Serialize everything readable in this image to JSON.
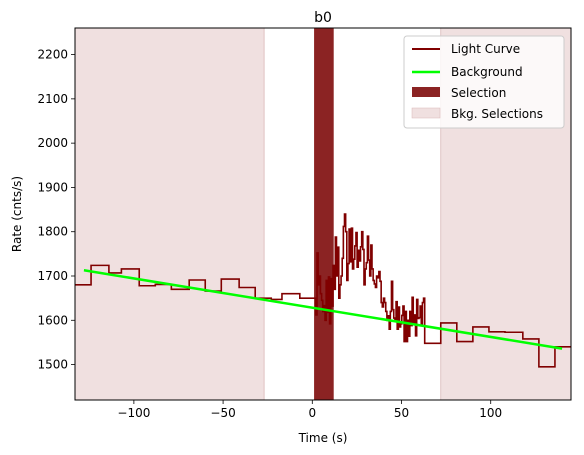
{
  "chart_data": {
    "type": "line",
    "title": "b0",
    "xlabel": "Time (s)",
    "ylabel": "Rate (cnts/s)",
    "xlim": [
      -133,
      145
    ],
    "ylim": [
      1420,
      2260
    ],
    "xticks": [
      -100,
      -50,
      0,
      50,
      100
    ],
    "xtick_labels": [
      "−100",
      "−50",
      "0",
      "50",
      "100"
    ],
    "yticks": [
      1500,
      1600,
      1700,
      1800,
      1900,
      2000,
      2100,
      2200
    ],
    "ytick_labels": [
      "1500",
      "1600",
      "1700",
      "1800",
      "1900",
      "2000",
      "2100",
      "2200"
    ],
    "grid": false,
    "legend_position": "upper right",
    "colors": {
      "light_curve": "#800000",
      "background": "#00ff00",
      "selection": "#8b2323",
      "bkg_selection": "#f0e0e0",
      "bkg_selection_edge": "#d9b8b8"
    },
    "legend": [
      {
        "label": "Light Curve",
        "kind": "line",
        "color": "#800000"
      },
      {
        "label": "Background",
        "kind": "line",
        "color": "#00ff00"
      },
      {
        "label": "Selection",
        "kind": "patch",
        "color": "#8b2323"
      },
      {
        "label": "Bkg. Selections",
        "kind": "patch",
        "color": "#f0e0e0"
      }
    ],
    "bkg_selections": [
      [
        -133,
        -27
      ],
      [
        72,
        145
      ]
    ],
    "selection": [
      1,
      12
    ],
    "background_line": {
      "x": [
        -128,
        140
      ],
      "y": [
        1713,
        1536
      ]
    },
    "light_curve_bins": [
      [
        -133,
        -124,
        1680
      ],
      [
        -124,
        -114,
        1724
      ],
      [
        -114,
        -107,
        1707
      ],
      [
        -107,
        -97,
        1716
      ],
      [
        -97,
        -88,
        1678
      ],
      [
        -88,
        -79,
        1681
      ],
      [
        -79,
        -69,
        1670
      ],
      [
        -69,
        -60,
        1691
      ],
      [
        -60,
        -51,
        1666
      ],
      [
        -51,
        -41,
        1693
      ],
      [
        -41,
        -32,
        1674
      ],
      [
        -32,
        -23,
        1650
      ],
      [
        -23,
        -17,
        1647
      ],
      [
        -17,
        -7,
        1660
      ],
      [
        -7,
        2,
        1650
      ]
    ],
    "light_curve_fast": {
      "x0": 2,
      "x1": 63,
      "y": [
        1612,
        1752,
        1680,
        1700,
        1660,
        1645,
        1620,
        1633,
        1600,
        1690,
        1618,
        1698,
        1592,
        1694,
        1632,
        1724,
        1670,
        1788,
        1700,
        1765,
        1650,
        1680,
        1700,
        1740,
        1812,
        1840,
        1800,
        1690,
        1728,
        1806,
        1732,
        1808,
        1716,
        1738,
        1768,
        1798,
        1720,
        1758,
        1734,
        1766,
        1800,
        1760,
        1680,
        1716,
        1730,
        1790,
        1736,
        1700,
        1770,
        1716,
        1690,
        1682,
        1674,
        1700,
        1696,
        1710,
        1688,
        1640,
        1630,
        1650,
        1640,
        1620,
        1600,
        1610,
        1580,
        1620,
        1688,
        1624,
        1605,
        1600,
        1642,
        1580,
        1630,
        1585,
        1592,
        1611,
        1632,
        1552,
        1620,
        1552,
        1600,
        1564,
        1620,
        1588,
        1652,
        1590,
        1612,
        1565,
        1647,
        1604,
        1606,
        1632,
        1590,
        1640,
        1650
      ]
    },
    "light_curve_tail": [
      [
        63,
        72,
        1548
      ],
      [
        72,
        81,
        1594
      ],
      [
        81,
        90,
        1552
      ],
      [
        90,
        99,
        1585
      ],
      [
        99,
        108,
        1574
      ],
      [
        108,
        118,
        1573
      ],
      [
        118,
        127,
        1558
      ],
      [
        127,
        136,
        1495
      ],
      [
        136,
        145,
        1540
      ]
    ]
  }
}
